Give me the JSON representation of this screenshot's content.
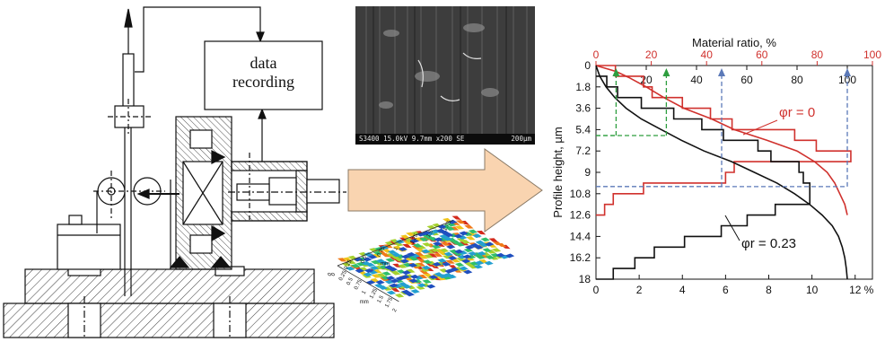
{
  "diagram": {
    "data_box": {
      "line1": "data",
      "line2": "recording"
    },
    "sem": {
      "caption_left": "S3400 15.0kV 9.7mm x200 SE",
      "caption_right": "200µm"
    },
    "topography": {
      "axis_label": "mm",
      "ticks_a": [
        "0",
        "0.25",
        "0.5",
        "0.75",
        "1",
        "1.25",
        "1.5",
        "1.75"
      ],
      "ticks_b": [
        "0",
        "0.25",
        "0.5",
        "0.75",
        "1",
        "1.25",
        "1.5",
        "1.75",
        "2"
      ]
    }
  },
  "chart_data": {
    "type": "line",
    "top_axis": {
      "label": "Material ratio, %",
      "ticks": [
        "0",
        "20",
        "40",
        "60",
        "80",
        "100"
      ],
      "range": [
        0,
        100
      ],
      "color": "#d0312d"
    },
    "bottom_axis": {
      "ticks": [
        "0",
        "2",
        "4",
        "6",
        "8",
        "10",
        "12"
      ],
      "unit": "%",
      "range": [
        0,
        12.8
      ]
    },
    "inner_axis": {
      "ticks": [
        "20",
        "40",
        "60",
        "80",
        "100"
      ],
      "range": [
        0,
        110
      ]
    },
    "ylabel": "Profile height, µm",
    "y_ticks": [
      "0",
      "1.8",
      "3.6",
      "5.4",
      "7.2",
      "9",
      "10.8",
      "12.6",
      "14.4",
      "16.2",
      "18"
    ],
    "y_range": [
      0,
      18
    ],
    "series": [
      {
        "name": "φr = 0",
        "color": "#d0312d",
        "histogram": [
          [
            0,
            0.9
          ],
          [
            0.9,
            2.2
          ],
          [
            1.8,
            2.6
          ],
          [
            2.7,
            4.0
          ],
          [
            3.6,
            5.3
          ],
          [
            4.5,
            6.3
          ],
          [
            5.4,
            9.2
          ],
          [
            6.3,
            10.2
          ],
          [
            7.2,
            11.8
          ],
          [
            8.1,
            6.4
          ],
          [
            9.0,
            6.0
          ],
          [
            9.9,
            2.2
          ],
          [
            10.8,
            0.8
          ],
          [
            11.7,
            0.4
          ]
        ],
        "material_ratio": [
          [
            0,
            0
          ],
          [
            0.5,
            8
          ],
          [
            1.0,
            13
          ],
          [
            1.8,
            20
          ],
          [
            2.7,
            27
          ],
          [
            3.6,
            35
          ],
          [
            4.5,
            46
          ],
          [
            5.4,
            55
          ],
          [
            6.3,
            68
          ],
          [
            7.2,
            80
          ],
          [
            8.1,
            87
          ],
          [
            9.0,
            92
          ],
          [
            9.9,
            95
          ],
          [
            10.8,
            97
          ],
          [
            11.7,
            99
          ],
          [
            12.6,
            100
          ]
        ]
      },
      {
        "name": "φr = 0.23",
        "color": "#111111",
        "histogram": [
          [
            0.9,
            0.5
          ],
          [
            1.8,
            1.0
          ],
          [
            2.7,
            2.1
          ],
          [
            3.6,
            3.6
          ],
          [
            4.5,
            4.9
          ],
          [
            5.4,
            5.9
          ],
          [
            6.3,
            7.5
          ],
          [
            7.2,
            8.1
          ],
          [
            8.1,
            9.4
          ],
          [
            9.0,
            9.6
          ],
          [
            9.9,
            9.9
          ],
          [
            10.8,
            9.9
          ],
          [
            11.7,
            8.3
          ],
          [
            12.6,
            7.0
          ],
          [
            13.5,
            5.8
          ],
          [
            14.4,
            4.1
          ],
          [
            15.3,
            2.7
          ],
          [
            16.2,
            1.8
          ],
          [
            17.1,
            0.8
          ]
        ],
        "material_ratio": [
          [
            0,
            0
          ],
          [
            0.9,
            1.5
          ],
          [
            1.8,
            4
          ],
          [
            2.7,
            7.5
          ],
          [
            3.6,
            12
          ],
          [
            4.5,
            18
          ],
          [
            5.4,
            26
          ],
          [
            6.3,
            34
          ],
          [
            7.2,
            43
          ],
          [
            8.1,
            54
          ],
          [
            9.0,
            63
          ],
          [
            9.9,
            72
          ],
          [
            10.8,
            79
          ],
          [
            11.7,
            85
          ],
          [
            12.6,
            90
          ],
          [
            13.5,
            94
          ],
          [
            14.4,
            96.5
          ],
          [
            15.3,
            98
          ],
          [
            16.2,
            99
          ],
          [
            17.1,
            99.6
          ],
          [
            18,
            100
          ]
        ]
      }
    ],
    "annotations": [
      {
        "label": "φr = 0",
        "series": 0
      },
      {
        "label": "φr = 0.23",
        "series": 1
      }
    ],
    "reference_lines": [
      {
        "color": "#2e9e3f",
        "ratio": 8,
        "height": 5.9
      },
      {
        "color": "#2e9e3f",
        "ratio": 28,
        "height": 5.9
      },
      {
        "color": "#5b79b8",
        "ratio": 50,
        "height": 10.2
      },
      {
        "color": "#5b79b8",
        "ratio": 100,
        "height": 10.2
      }
    ]
  }
}
